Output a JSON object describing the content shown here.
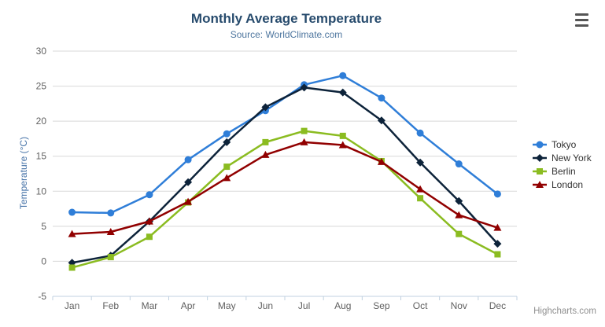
{
  "chart_data": {
    "type": "line",
    "title": "Monthly Average Temperature",
    "subtitle": "Source: WorldClimate.com",
    "categories": [
      "Jan",
      "Feb",
      "Mar",
      "Apr",
      "May",
      "Jun",
      "Jul",
      "Aug",
      "Sep",
      "Oct",
      "Nov",
      "Dec"
    ],
    "series": [
      {
        "name": "Tokyo",
        "color": "#2f7ed8",
        "marker": "circle",
        "values": [
          7.0,
          6.9,
          9.5,
          14.5,
          18.2,
          21.5,
          25.2,
          26.5,
          23.3,
          18.3,
          13.9,
          9.6
        ]
      },
      {
        "name": "New York",
        "color": "#0d233a",
        "marker": "diamond",
        "values": [
          -0.2,
          0.8,
          5.7,
          11.3,
          17.0,
          22.0,
          24.8,
          24.1,
          20.1,
          14.1,
          8.6,
          2.5
        ]
      },
      {
        "name": "Berlin",
        "color": "#8bbc21",
        "marker": "square",
        "values": [
          -0.9,
          0.6,
          3.5,
          8.4,
          13.5,
          17.0,
          18.6,
          17.9,
          14.3,
          9.0,
          3.9,
          1.0
        ]
      },
      {
        "name": "London",
        "color": "#910000",
        "marker": "triangle",
        "values": [
          3.9,
          4.2,
          5.7,
          8.5,
          11.9,
          15.2,
          17.0,
          16.6,
          14.2,
          10.3,
          6.6,
          4.8
        ]
      }
    ],
    "xlabel": "",
    "ylabel": "Temperature (°C)",
    "ylim": [
      -5,
      30
    ],
    "yticks": [
      -5,
      0,
      5,
      10,
      15,
      20,
      25,
      30
    ],
    "grid": true,
    "legend_position": "right"
  },
  "credits": {
    "label": "Highcharts.com"
  }
}
